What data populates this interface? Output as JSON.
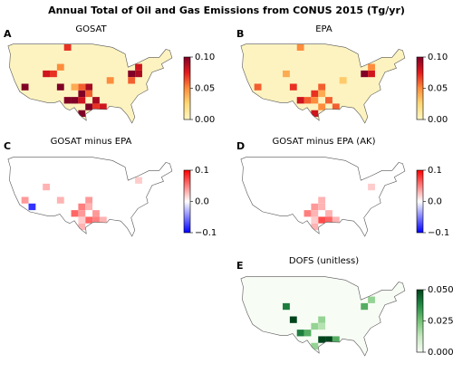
{
  "title": "Annual Total of Oil and Gas Emissions from CONUS 2015 (Tg/yr)",
  "panels": [
    {
      "letter": "A",
      "title": "GOSAT",
      "cmap": "YlOrRd",
      "lim": [
        0,
        0.1
      ],
      "ticks": [
        {
          "value": 0.1,
          "label": "0.10"
        },
        {
          "value": 0.05,
          "label": "0.05"
        },
        {
          "value": 0,
          "label": "0.00"
        }
      ],
      "cells": [
        [
          -103.75,
          32,
          0.1
        ],
        [
          -101.25,
          32,
          0.1
        ],
        [
          -98.75,
          34,
          0.1
        ],
        [
          -98.75,
          32,
          0.08
        ],
        [
          -96.25,
          30,
          0.1
        ],
        [
          -93.75,
          32,
          0.09
        ],
        [
          -91.25,
          30,
          0.08
        ],
        [
          -93.75,
          30,
          0.07
        ],
        [
          -98.75,
          28,
          0.1
        ],
        [
          -96.25,
          36,
          0.09
        ],
        [
          -98.75,
          36,
          0.06
        ],
        [
          -106.25,
          36,
          0.1
        ],
        [
          -108.75,
          40,
          0.07
        ],
        [
          -111.25,
          40,
          0.08
        ],
        [
          -106.25,
          42,
          0.05
        ],
        [
          -118.75,
          36,
          0.1
        ],
        [
          -81.25,
          40,
          0.1
        ],
        [
          -78.75,
          40,
          0.09
        ],
        [
          -78.75,
          42,
          0.08
        ],
        [
          -81.25,
          38,
          0.06
        ],
        [
          -103.75,
          48,
          0.07
        ],
        [
          -88.75,
          38,
          0.05
        ],
        [
          -96.25,
          34,
          0.06
        ],
        [
          -101.25,
          36,
          0.04
        ]
      ]
    },
    {
      "letter": "B",
      "title": "EPA",
      "cmap": "YlOrRd",
      "lim": [
        0,
        0.1
      ],
      "ticks": [
        {
          "value": 0.1,
          "label": "0.10"
        },
        {
          "value": 0.05,
          "label": "0.05"
        },
        {
          "value": 0,
          "label": "0.00"
        }
      ],
      "cells": [
        [
          -103.75,
          32,
          0.08
        ],
        [
          -101.25,
          32,
          0.06
        ],
        [
          -98.75,
          34,
          0.07
        ],
        [
          -98.75,
          32,
          0.05
        ],
        [
          -96.25,
          30,
          0.05
        ],
        [
          -93.75,
          32,
          0.06
        ],
        [
          -91.25,
          30,
          0.06
        ],
        [
          -98.75,
          28,
          0.08
        ],
        [
          -96.25,
          36,
          0.06
        ],
        [
          -106.25,
          36,
          0.07
        ],
        [
          -108.75,
          40,
          0.04
        ],
        [
          -118.75,
          36,
          0.06
        ],
        [
          -81.25,
          40,
          0.1
        ],
        [
          -78.75,
          40,
          0.08
        ],
        [
          -78.75,
          42,
          0.05
        ],
        [
          -103.75,
          48,
          0.05
        ],
        [
          -88.75,
          38,
          0.03
        ],
        [
          -96.25,
          34,
          0.04
        ]
      ]
    },
    {
      "letter": "C",
      "title": "GOSAT minus EPA",
      "cmap": "bwr",
      "lim": [
        -0.1,
        0.1
      ],
      "ticks": [
        0.1,
        {
          "value": 0,
          "label": "0.0"
        },
        {
          "value": -0.1,
          "label": "−0.1"
        }
      ],
      "cells": [
        [
          -101.25,
          32,
          0.06
        ],
        [
          -98.75,
          34,
          0.05
        ],
        [
          -98.75,
          32,
          0.04
        ],
        [
          -96.25,
          30,
          0.06
        ],
        [
          -93.75,
          32,
          0.04
        ],
        [
          -93.75,
          30,
          0.05
        ],
        [
          -91.25,
          30,
          0.03
        ],
        [
          -98.75,
          28,
          0.03
        ],
        [
          -96.25,
          36,
          0.04
        ],
        [
          -106.25,
          36,
          0.03
        ],
        [
          -111.25,
          40,
          0.03
        ],
        [
          -118.75,
          36,
          0.04
        ],
        [
          -78.75,
          42,
          0.02
        ],
        [
          -96.25,
          34,
          0.03
        ],
        [
          -116.25,
          34,
          -0.08
        ],
        [
          -98.75,
          30,
          0.02
        ]
      ]
    },
    {
      "letter": "D",
      "title": "GOSAT minus EPA (AK)",
      "cmap": "bwr",
      "lim": [
        -0.1,
        0.1
      ],
      "ticks": [
        0.1,
        {
          "value": 0,
          "label": "0.0"
        },
        {
          "value": -0.1,
          "label": "−0.1"
        }
      ],
      "cells": [
        [
          -101.25,
          32,
          0.05
        ],
        [
          -98.75,
          34,
          0.04
        ],
        [
          -98.75,
          32,
          0.03
        ],
        [
          -96.25,
          30,
          0.07
        ],
        [
          -93.75,
          32,
          0.03
        ],
        [
          -93.75,
          30,
          0.06
        ],
        [
          -91.25,
          30,
          0.03
        ],
        [
          -98.75,
          28,
          0.03
        ],
        [
          -96.25,
          36,
          0.03
        ],
        [
          -96.25,
          34,
          0.03
        ],
        [
          -78.75,
          40,
          0.02
        ],
        [
          -98.75,
          30,
          0.02
        ]
      ]
    },
    {
      "letter": "E",
      "title": "DOFS (unitless)",
      "cmap": "Greens",
      "lim": [
        0,
        0.05
      ],
      "ticks": [
        {
          "value": 0.05,
          "label": "0.050"
        },
        {
          "value": 0.025,
          "label": "0.025"
        },
        {
          "value": 0,
          "label": "0.000"
        }
      ],
      "cells": [
        [
          -103.75,
          32,
          0.04
        ],
        [
          -101.25,
          32,
          0.03
        ],
        [
          -98.75,
          34,
          0.02
        ],
        [
          -96.25,
          30,
          0.05
        ],
        [
          -93.75,
          30,
          0.05
        ],
        [
          -91.25,
          30,
          0.03
        ],
        [
          -98.75,
          28,
          0.02
        ],
        [
          -106.25,
          36,
          0.05
        ],
        [
          -108.75,
          40,
          0.04
        ],
        [
          -96.25,
          36,
          0.02
        ],
        [
          -81.25,
          40,
          0.03
        ],
        [
          -78.75,
          42,
          0.02
        ],
        [
          -96.25,
          34,
          0.015
        ]
      ]
    }
  ]
}
